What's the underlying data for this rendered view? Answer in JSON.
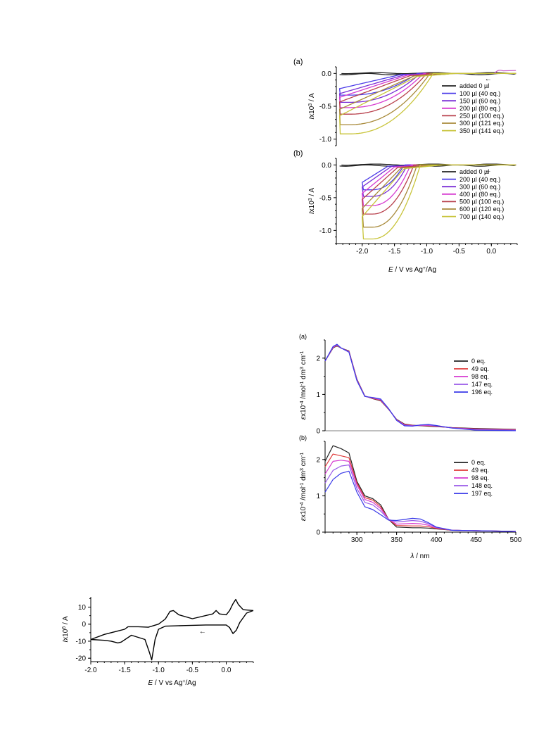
{
  "chart_data": [
    {
      "type": "line",
      "panel_label": "(a)",
      "ylabel": "I x10^3 / A",
      "xlim": [
        -2.4,
        0.4
      ],
      "ylim": [
        -1.1,
        0.1
      ],
      "yticks": [
        "0.0",
        "-0.5",
        "-1.0"
      ],
      "direction_arrow": "←",
      "legend_position": "right",
      "series": [
        {
          "name": "added 0 µl",
          "color": "#222222",
          "peak": 0.0,
          "onset": -1.0
        },
        {
          "name": "100 µl (40 eq.)",
          "color": "#4a3ae8",
          "peak": -0.33,
          "onset": -1.35
        },
        {
          "name": "150 µl (60 eq.)",
          "color": "#7a2fd6",
          "peak": -0.44,
          "onset": -1.3
        },
        {
          "name": "200 µl (80 eq.)",
          "color": "#d63ad0",
          "peak": -0.52,
          "onset": -1.25
        },
        {
          "name": "250 µl (100 eq.)",
          "color": "#b8404c",
          "peak": -0.62,
          "onset": -1.2
        },
        {
          "name": "300 µl (121 eq.)",
          "color": "#a88a3a",
          "peak": -0.78,
          "onset": -1.15
        },
        {
          "name": "350 µl (141 eq.)",
          "color": "#c8c43a",
          "peak": -0.92,
          "onset": -1.1
        }
      ]
    },
    {
      "type": "line",
      "panel_label": "(b)",
      "ylabel": "I x10^3 / A",
      "xlabel": "E / V vs Ag+/Ag",
      "xlim": [
        -2.4,
        0.4
      ],
      "ylim": [
        -1.2,
        0.1
      ],
      "xticks": [
        "-2.0",
        "-1.5",
        "-1.0",
        "-0.5",
        "0.0"
      ],
      "yticks": [
        "0.0",
        "-0.5",
        "-1.0"
      ],
      "direction_arrow": "←",
      "legend_position": "right",
      "series": [
        {
          "name": "added 0 µl",
          "color": "#222222",
          "peak": 0.0,
          "onset": -1.0
        },
        {
          "name": "200 µl (40 eq.)",
          "color": "#4a3ae8",
          "peak": -0.38,
          "onset": -1.55
        },
        {
          "name": "300 µl (60 eq.)",
          "color": "#7a2fd6",
          "peak": -0.48,
          "onset": -1.5
        },
        {
          "name": "400 µl (80 eq.)",
          "color": "#d63ad0",
          "peak": -0.62,
          "onset": -1.45
        },
        {
          "name": "500 µl (100 eq.)",
          "color": "#b8404c",
          "peak": -0.75,
          "onset": -1.4
        },
        {
          "name": "600 µl (120 eq.)",
          "color": "#a88a3a",
          "peak": -0.95,
          "onset": -1.35
        },
        {
          "name": "700 µl (140 eq.)",
          "color": "#c8c43a",
          "peak": -1.13,
          "onset": -1.3
        }
      ]
    },
    {
      "type": "line",
      "panel_label": "(a)",
      "ylabel": "ε x10^-4 /mol^-1 dm^3 cm^-1",
      "xlim": [
        260,
        500
      ],
      "ylim": [
        0,
        2.5
      ],
      "yticks": [
        "0",
        "1",
        "2"
      ],
      "legend_position": "right",
      "series": [
        {
          "name": "0 eq.",
          "color": "#222222"
        },
        {
          "name": "49 eq.",
          "color": "#e03a3a"
        },
        {
          "name": "98 eq.",
          "color": "#d63ad0"
        },
        {
          "name": "147 eq.",
          "color": "#9a5ae8"
        },
        {
          "name": "196 eq.",
          "color": "#3a3ae8"
        }
      ],
      "x": [
        260,
        270,
        275,
        280,
        290,
        300,
        310,
        320,
        330,
        340,
        350,
        360,
        370,
        380,
        390,
        400,
        420,
        450,
        500
      ],
      "y": [
        1.92,
        2.3,
        2.36,
        2.28,
        2.18,
        1.4,
        0.95,
        0.9,
        0.85,
        0.6,
        0.3,
        0.16,
        0.14,
        0.15,
        0.15,
        0.13,
        0.08,
        0.04,
        0.02
      ]
    },
    {
      "type": "line",
      "panel_label": "(b)",
      "ylabel": "ε x10^-4 /mol^-1 dm^3 cm^-1",
      "xlabel": "λ / nm",
      "xlim": [
        260,
        500
      ],
      "ylim": [
        0,
        2.5
      ],
      "xticks": [
        "300",
        "350",
        "400",
        "450",
        "500"
      ],
      "yticks": [
        "0",
        "1",
        "2"
      ],
      "legend_position": "right",
      "series": [
        {
          "name": "0 eq.",
          "color": "#222222",
          "y": [
            1.95,
            2.38,
            2.3,
            2.18,
            1.4,
            1.0,
            0.92,
            0.75,
            0.35,
            0.14,
            0.12,
            0.12,
            0.11,
            0.09,
            0.05,
            0.02
          ]
        },
        {
          "name": "49 eq.",
          "color": "#e03a3a",
          "y": [
            1.8,
            2.15,
            2.1,
            2.05,
            1.35,
            0.95,
            0.88,
            0.7,
            0.35,
            0.18,
            0.17,
            0.17,
            0.15,
            0.1,
            0.05,
            0.02
          ]
        },
        {
          "name": "98 eq.",
          "color": "#d63ad0",
          "y": [
            1.6,
            1.95,
            1.98,
            1.95,
            1.3,
            0.9,
            0.82,
            0.65,
            0.35,
            0.22,
            0.24,
            0.23,
            0.19,
            0.12,
            0.05,
            0.02
          ]
        },
        {
          "name": "148 eq.",
          "color": "#9a5ae8",
          "y": [
            1.35,
            1.7,
            1.82,
            1.85,
            1.2,
            0.82,
            0.75,
            0.58,
            0.35,
            0.28,
            0.32,
            0.3,
            0.23,
            0.13,
            0.05,
            0.02
          ]
        },
        {
          "name": "197 eq.",
          "color": "#3a3ae8",
          "y": [
            1.1,
            1.45,
            1.62,
            1.68,
            1.1,
            0.7,
            0.62,
            0.48,
            0.33,
            0.32,
            0.38,
            0.36,
            0.26,
            0.14,
            0.05,
            0.02
          ]
        }
      ],
      "x": [
        260,
        270,
        280,
        290,
        300,
        310,
        320,
        330,
        340,
        350,
        370,
        380,
        390,
        400,
        420,
        500
      ]
    },
    {
      "type": "line",
      "ylabel": "I x10^6 / A",
      "xlabel": "E / V vs Ag+/Ag",
      "xlim": [
        -2.0,
        0.4
      ],
      "ylim": [
        -22,
        16
      ],
      "xticks": [
        "-2.0",
        "-1.5",
        "-1.0",
        "-0.5",
        "0.0"
      ],
      "yticks": [
        "10",
        "0",
        "-10",
        "-20"
      ],
      "direction_arrow": "←",
      "series": [
        {
          "name": "",
          "color": "#000000"
        }
      ],
      "forward_x": [
        0.4,
        0.3,
        0.2,
        0.15,
        0.1,
        0.05,
        0.0,
        -0.3,
        -0.6,
        -0.9,
        -1.0,
        -1.05,
        -1.08,
        -1.1,
        -1.13,
        -1.2,
        -1.4,
        -1.55,
        -1.6,
        -1.7,
        -1.8,
        -2.0
      ],
      "forward_y": [
        8,
        6.5,
        1,
        -3.5,
        -5.5,
        -2.0,
        -0.5,
        -0.5,
        -0.8,
        -1.2,
        -3.0,
        -9,
        -16,
        -21,
        -17,
        -9,
        -6.5,
        -10.5,
        -11,
        -10,
        -9.5,
        -9
      ],
      "reverse_x": [
        -2.0,
        -1.8,
        -1.6,
        -1.5,
        -1.45,
        -1.3,
        -1.15,
        -1.0,
        -0.9,
        -0.83,
        -0.78,
        -0.7,
        -0.5,
        -0.2,
        -0.15,
        -0.1,
        0.0,
        0.05,
        0.1,
        0.14,
        0.18,
        0.25,
        0.4
      ],
      "reverse_y": [
        -9,
        -6,
        -4,
        -3.0,
        -1.5,
        -1.5,
        -1.8,
        0,
        3.0,
        7.5,
        8.0,
        5.5,
        3.2,
        6.0,
        8.0,
        6.0,
        5.5,
        8.0,
        12.0,
        14.5,
        11.5,
        8.5,
        8
      ]
    }
  ]
}
